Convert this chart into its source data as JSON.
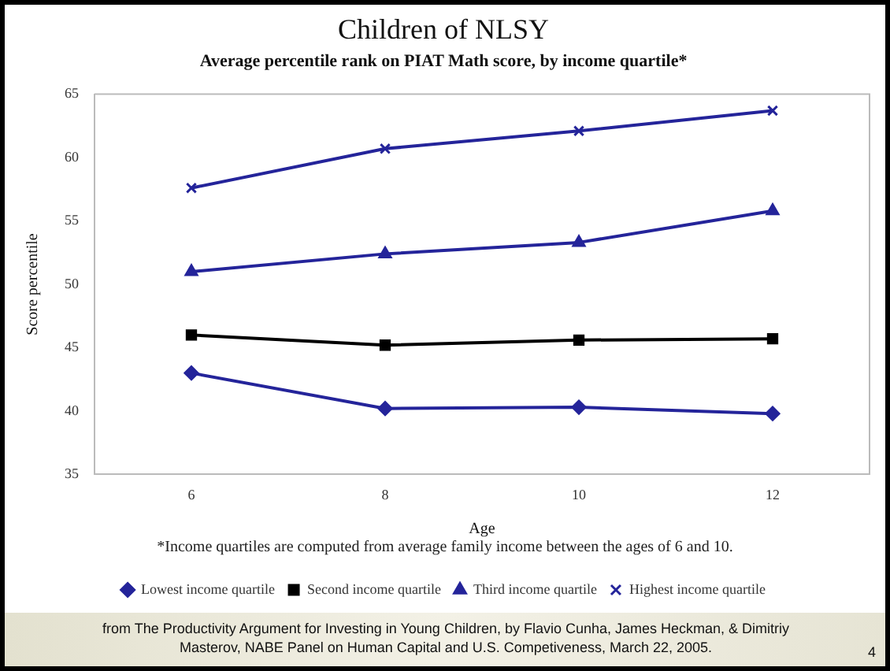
{
  "chart_data": {
    "type": "line",
    "title": "Children of NLSY",
    "subtitle": "Average percentile rank on PIAT Math score, by income quartile*",
    "xlabel": "Age",
    "ylabel": "Score percentile",
    "categories": [
      "6",
      "8",
      "10",
      "12"
    ],
    "series": [
      {
        "name": "Lowest income quartile",
        "color": "#24249a",
        "marker": "diamond",
        "values": [
          43.0,
          40.2,
          40.3,
          39.8
        ]
      },
      {
        "name": "Second income quartile",
        "color": "#000000",
        "marker": "square",
        "values": [
          46.0,
          45.2,
          45.6,
          45.7
        ]
      },
      {
        "name": "Third income quartile",
        "color": "#24249a",
        "marker": "triangle",
        "values": [
          51.0,
          52.4,
          53.3,
          55.8
        ]
      },
      {
        "name": "Highest income quartile",
        "color": "#24249a",
        "marker": "cross",
        "values": [
          57.6,
          60.7,
          62.1,
          63.7
        ]
      }
    ],
    "ylim": [
      35,
      65
    ],
    "yticks": [
      35,
      40,
      45,
      50,
      55,
      60,
      65
    ],
    "grid": false,
    "legend": "bottom",
    "line_style": "solid",
    "annotations": [
      "*Income quartiles are computed from average family income between the ages of 6 and 10.",
      "from The Productivity Argument for Investing in Young Children, by Flavio Cunha, James Heckman, & Dimitriy Masterov, NABE Panel on Human Capital and U.S. Competiveness, March 22, 2005.",
      "4"
    ]
  }
}
